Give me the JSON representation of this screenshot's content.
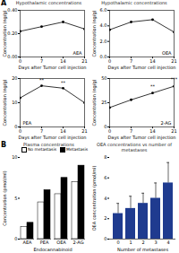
{
  "chart_data": [
    {
      "type": "line",
      "panel": "A",
      "title": "Hypothalamic concentrations",
      "x": [
        0,
        7,
        14,
        21
      ],
      "xlim": [
        0,
        21
      ],
      "xticks": [
        0,
        7,
        14,
        21
      ],
      "xlabel": "Days after Tumor cell injection",
      "ylabel": "Concentration (ng/g)",
      "ylim": [
        0,
        0.4
      ],
      "yticks": [
        0,
        0.2,
        0.4
      ],
      "legend": "bottom-right",
      "marker": "circle",
      "line_style": "solid",
      "series": [
        {
          "name": "AEA",
          "color": "#000000",
          "values": [
            0.22,
            0.26,
            0.3,
            0.24
          ]
        }
      ]
    },
    {
      "type": "line",
      "title": "Hypothalamic concentrations",
      "x": [
        0,
        7,
        14,
        21
      ],
      "xlim": [
        0,
        21
      ],
      "xticks": [
        0,
        7,
        14,
        21
      ],
      "xlabel": "Days after Tumor cell injection",
      "ylabel": "Concentration (ng/g)",
      "ylim": [
        0,
        6
      ],
      "yticks": [
        0,
        2,
        4,
        6
      ],
      "legend": "bottom-right",
      "marker": "circle",
      "line_style": "solid",
      "series": [
        {
          "name": "OEA",
          "color": "#000000",
          "values": [
            3.5,
            4.5,
            4.8,
            3.2
          ]
        }
      ]
    },
    {
      "type": "line",
      "x": [
        0,
        7,
        14,
        21
      ],
      "xlim": [
        0,
        21
      ],
      "xticks": [
        0,
        7,
        14,
        21
      ],
      "xlabel": "Days after Tumor cell injection",
      "ylabel": "Concentration (ng/g)",
      "ylim": [
        0,
        20
      ],
      "yticks": [
        0,
        10,
        20
      ],
      "legend": "bottom-left",
      "marker": "circle",
      "line_style": "solid",
      "series": [
        {
          "name": "PEA",
          "color": "#000000",
          "values": [
            12,
            17,
            16,
            10
          ]
        }
      ],
      "annotations": [
        {
          "x": 7,
          "y": 18.5,
          "text": "**"
        },
        {
          "x": 14,
          "y": 17.5,
          "text": "**"
        }
      ]
    },
    {
      "type": "line",
      "x": [
        0,
        7,
        14,
        21
      ],
      "xlim": [
        0,
        21
      ],
      "xticks": [
        0,
        7,
        14,
        21
      ],
      "xlabel": "Days after Tumor cell injection",
      "ylabel": "Concentration (ng/g)",
      "ylim": [
        0,
        50
      ],
      "yticks": [
        0,
        25,
        50
      ],
      "legend": "bottom-right",
      "marker": "circle",
      "line_style": "solid",
      "series": [
        {
          "name": "2-AG",
          "color": "#000000",
          "values": [
            20,
            28,
            35,
            42
          ]
        }
      ],
      "annotations": [
        {
          "x": 14,
          "y": 40,
          "text": "**"
        },
        {
          "x": 21,
          "y": 47,
          "text": "***"
        }
      ]
    },
    {
      "type": "bar",
      "panel": "B",
      "title": "Plasma concentrations",
      "categories": [
        "AEA",
        "PEA",
        "OEA",
        "2-AG"
      ],
      "xlabel": "Endocannabinoid",
      "ylabel": "Concentration (pmol/ml)",
      "ylim": [
        0,
        10
      ],
      "yticks": [
        0,
        5,
        10
      ],
      "legend": "top",
      "series": [
        {
          "name": "No metastasis",
          "color": "#ffffff",
          "values": [
            1.5,
            4.5,
            5.5,
            7
          ]
        },
        {
          "name": "Metastasis",
          "color": "#000000",
          "values": [
            2,
            6,
            7.5,
            9
          ]
        }
      ]
    },
    {
      "type": "bar",
      "title": "OEA concentrations vs number of metastases",
      "categories": [
        "0",
        "1",
        "2",
        "3",
        "4"
      ],
      "xlabel": "Number of metastases",
      "ylabel": "OEA concentration (pmol/ml)",
      "ylim": [
        0,
        8
      ],
      "yticks": [
        0,
        2,
        4,
        6,
        8
      ],
      "color": "#1f3b8f",
      "values": [
        2.5,
        3,
        3.5,
        4,
        5.5
      ],
      "errors": [
        1,
        1.2,
        1,
        1.5,
        2
      ]
    }
  ]
}
